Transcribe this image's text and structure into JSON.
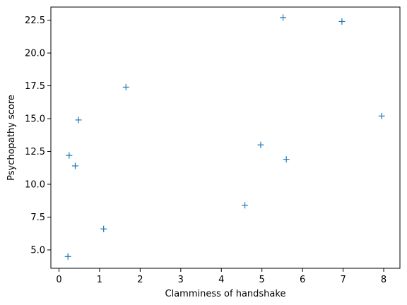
{
  "chart_data": {
    "type": "scatter",
    "title": "",
    "xlabel": "Clamminess of handshake",
    "ylabel": "Psychopathy score",
    "xlim": [
      -0.2,
      8.4
    ],
    "ylim": [
      3.6,
      23.5
    ],
    "grid": false,
    "marker": "+",
    "color": "#1f77b4",
    "x_ticks": [
      0,
      1,
      2,
      3,
      4,
      5,
      6,
      7,
      8
    ],
    "x_tick_labels": [
      "0",
      "1",
      "2",
      "3",
      "4",
      "5",
      "6",
      "7",
      "8"
    ],
    "y_ticks": [
      5.0,
      7.5,
      10.0,
      12.5,
      15.0,
      17.5,
      20.0,
      22.5
    ],
    "y_tick_labels": [
      "5.0",
      "7.5",
      "10.0",
      "12.5",
      "15.0",
      "17.5",
      "20.0",
      "22.5"
    ],
    "series": [
      {
        "x": [
          0.22,
          0.25,
          0.4,
          0.48,
          1.1,
          1.65,
          4.58,
          4.97,
          5.52,
          5.6,
          6.97,
          7.95
        ],
        "y": [
          4.5,
          12.2,
          11.4,
          14.9,
          6.6,
          17.4,
          8.4,
          13.0,
          22.7,
          11.9,
          22.4,
          15.2
        ]
      }
    ]
  }
}
